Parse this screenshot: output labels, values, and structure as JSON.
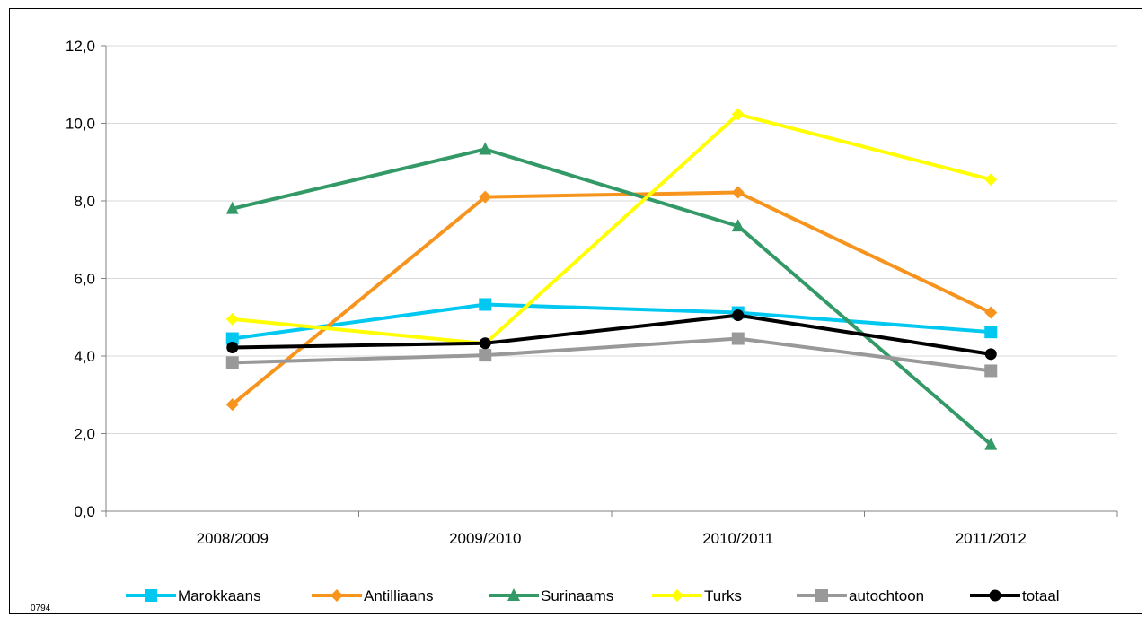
{
  "footnote": "0794",
  "chart_data": {
    "type": "line",
    "title": "",
    "xlabel": "",
    "ylabel": "",
    "categories": [
      "2008/2009",
      "2009/2010",
      "2010/2011",
      "2011/2012"
    ],
    "ylim": [
      0,
      12
    ],
    "yticks": [
      "0,0",
      "2,0",
      "4,0",
      "6,0",
      "8,0",
      "10,0",
      "12,0"
    ],
    "grid": "horizontal",
    "legend_position": "bottom",
    "series": [
      {
        "name": "Marokkaans",
        "color": "#00C8F0",
        "marker": "square",
        "values": [
          4.45,
          5.33,
          5.12,
          4.62
        ]
      },
      {
        "name": "Antilliaans",
        "color": "#F7941D",
        "marker": "diamond",
        "values": [
          2.75,
          8.1,
          8.22,
          5.12
        ]
      },
      {
        "name": "Surinaams",
        "color": "#339966",
        "marker": "triangle",
        "values": [
          7.8,
          9.33,
          7.35,
          1.72
        ]
      },
      {
        "name": "Turks",
        "color": "#FFFF00",
        "marker": "diamond",
        "values": [
          4.95,
          4.32,
          10.23,
          8.55
        ]
      },
      {
        "name": "autochtoon",
        "color": "#999999",
        "marker": "square",
        "values": [
          3.83,
          4.02,
          4.45,
          3.62
        ]
      },
      {
        "name": "totaal",
        "color": "#000000",
        "marker": "circle",
        "values": [
          4.22,
          4.33,
          5.05,
          4.05
        ]
      }
    ]
  }
}
